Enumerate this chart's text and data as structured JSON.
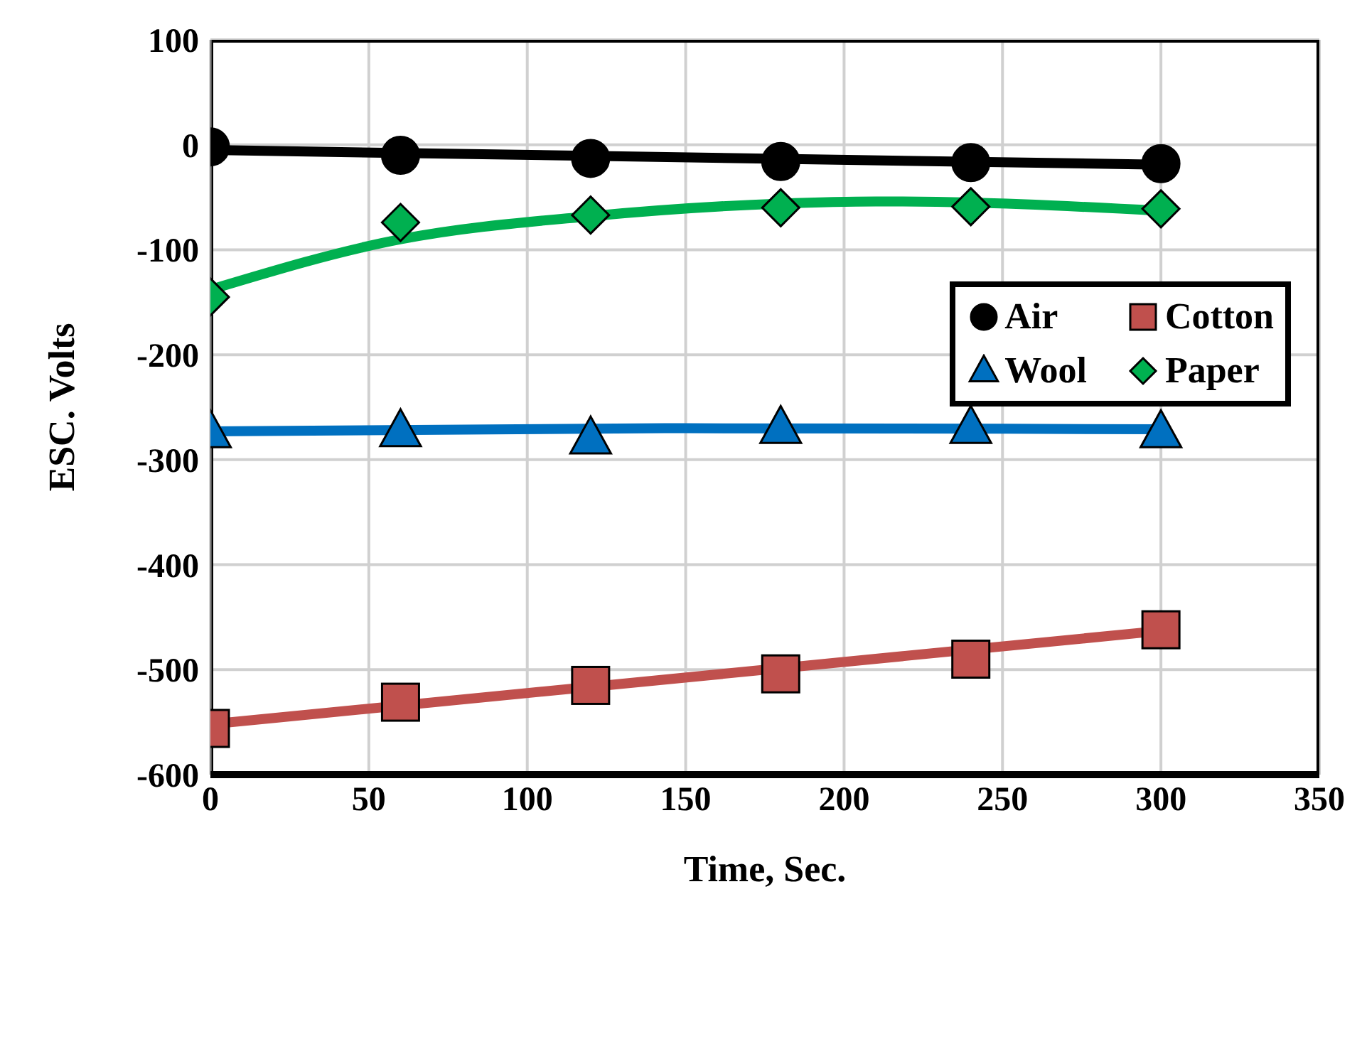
{
  "chart_data": {
    "type": "scatter",
    "xlabel": "Time, Sec.",
    "ylabel": "ESC. Volts",
    "x": [
      0,
      60,
      120,
      180,
      240,
      300
    ],
    "xlim": [
      0,
      350
    ],
    "xticks": [
      0,
      50,
      100,
      150,
      200,
      250,
      300,
      350
    ],
    "ylim": [
      -600,
      100
    ],
    "yticks": [
      -600,
      -500,
      -400,
      -300,
      -200,
      -100,
      0,
      100
    ],
    "grid": true,
    "legend": "right",
    "series": [
      {
        "name": "Air",
        "color": "#000000",
        "marker": "circle",
        "values": [
          -2,
          -10,
          -13,
          -16,
          -17,
          -18
        ]
      },
      {
        "name": "Cotton",
        "color": "#c0504d",
        "marker": "square",
        "values": [
          -556,
          -531,
          -515,
          -504,
          -490,
          -462
        ]
      },
      {
        "name": "Wool",
        "color": "#0070c0",
        "marker": "triangle",
        "values": [
          -274,
          -273,
          -280,
          -270,
          -270,
          -274
        ]
      },
      {
        "name": "Paper",
        "color": "#00b050",
        "marker": "diamond",
        "values": [
          -145,
          -74,
          -67,
          -60,
          -59,
          -61
        ]
      },
      {
        "type": "line",
        "color": "#000000",
        "marker": "none",
        "x": [
          0,
          300
        ],
        "values": [
          -5,
          -19
        ]
      },
      {
        "type": "line",
        "color": "#c0504d",
        "marker": "none",
        "x": [
          0,
          300
        ],
        "values": [
          -552,
          -463
        ]
      },
      {
        "type": "line",
        "color": "#0070c0",
        "marker": "none",
        "x": [
          0,
          150,
          300
        ],
        "values": [
          -273,
          -270,
          -271
        ]
      },
      {
        "type": "line",
        "color": "#00b050",
        "marker": "none",
        "x": [
          0,
          60,
          120,
          180,
          210,
          240,
          300
        ],
        "values": [
          -138,
          -90,
          -68,
          -56,
          -54,
          -55,
          -63
        ]
      }
    ]
  }
}
